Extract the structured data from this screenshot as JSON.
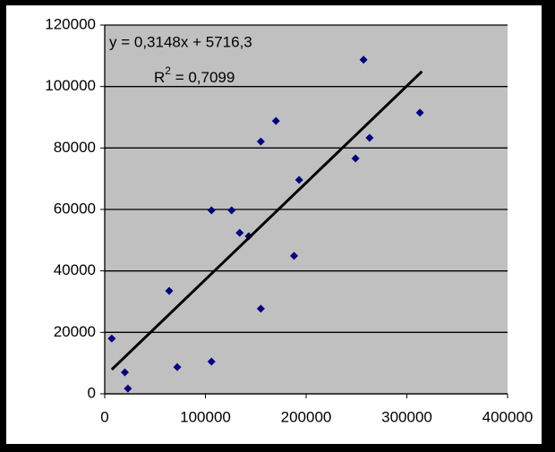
{
  "chart_data": {
    "type": "scatter",
    "x": [
      7000,
      20000,
      23000,
      64000,
      72000,
      106000,
      106000,
      126000,
      134000,
      143000,
      155000,
      155000,
      170000,
      188000,
      193000,
      249000,
      257000,
      263000,
      313000
    ],
    "series": [
      {
        "color": "#000080",
        "values": [
          18000,
          7000,
          1700,
          33500,
          8700,
          59700,
          10500,
          59700,
          52400,
          51300,
          82100,
          27700,
          88800,
          44900,
          69600,
          76600,
          108700,
          83300,
          91500
        ]
      }
    ],
    "trendline": {
      "color": "#000000",
      "x": [
        7000,
        315000
      ],
      "values": [
        7900,
        104900
      ],
      "equation": "y = 0,3148x + 5716,3",
      "r_label": "R",
      "r_power": "2",
      "r_value": " = 0,7099"
    },
    "xlim": [
      0,
      400000
    ],
    "xticks": [
      0,
      100000,
      200000,
      300000,
      400000
    ],
    "ylim": [
      0,
      120000
    ],
    "yticks": [
      0,
      20000,
      40000,
      60000,
      80000,
      100000,
      120000
    ],
    "grid": true,
    "plot_color": "#c0c0c0"
  }
}
